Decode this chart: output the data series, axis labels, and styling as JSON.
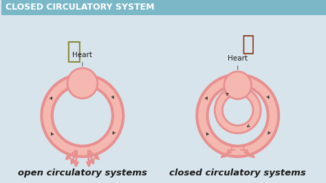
{
  "title": "CLOSED CIRCULATORY SYSTEM",
  "title_bg": "#7ab8c8",
  "title_color": "#ffffff",
  "title_fontsize": 9,
  "bg_color": "#d8e4ec",
  "left_label": "open circulatory systems",
  "right_label": "closed circulatory systems",
  "heart_label": "Heart",
  "label_fontsize": 10,
  "heart_label_fontsize": 7.5,
  "pink_light": "#f5b8b0",
  "pink_mid": "#e89090",
  "pink_dark": "#d46060",
  "arrow_color": "#333333",
  "label_color": "#1a1a1a"
}
